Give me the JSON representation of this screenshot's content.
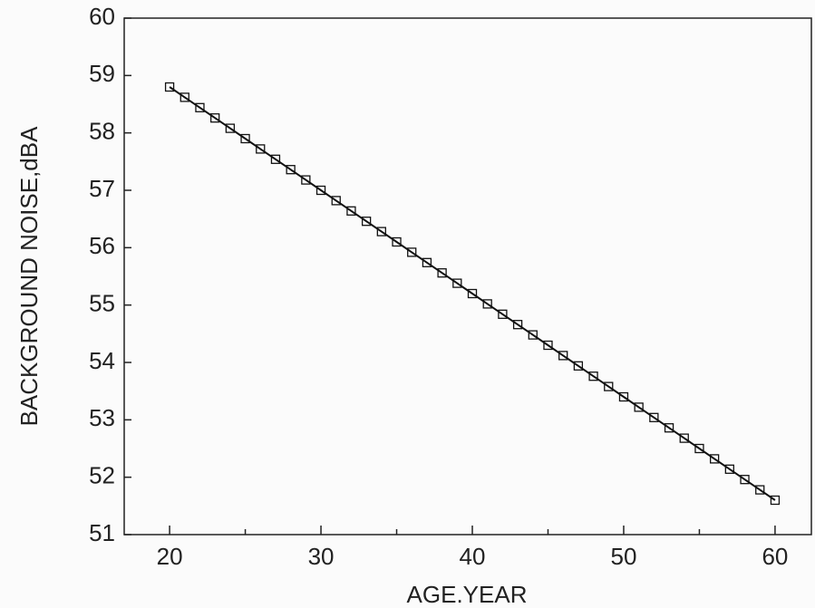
{
  "chart_data": {
    "type": "line",
    "xlabel": "AGE.YEAR",
    "ylabel": "BACKGROUND NOISE,dBA",
    "x": [
      20,
      21,
      22,
      23,
      24,
      25,
      26,
      27,
      28,
      29,
      30,
      31,
      32,
      33,
      34,
      35,
      36,
      37,
      38,
      39,
      40,
      41,
      42,
      43,
      44,
      45,
      46,
      47,
      48,
      49,
      50,
      51,
      52,
      53,
      54,
      55,
      56,
      57,
      58,
      59,
      60
    ],
    "series": [
      {
        "color": "#111111",
        "marker": "square",
        "values": [
          58.8,
          58.62,
          58.44,
          58.26,
          58.08,
          57.9,
          57.72,
          57.54,
          57.36,
          57.18,
          57.0,
          56.82,
          56.64,
          56.46,
          56.28,
          56.1,
          55.92,
          55.74,
          55.56,
          55.38,
          55.2,
          55.02,
          54.84,
          54.66,
          54.48,
          54.3,
          54.12,
          53.94,
          53.76,
          53.58,
          53.4,
          53.22,
          53.04,
          52.86,
          52.68,
          52.5,
          52.32,
          52.14,
          51.96,
          51.78,
          51.6
        ]
      }
    ],
    "xlim": [
      17,
      62.4
    ],
    "ylim": [
      51,
      60
    ],
    "xticks": [
      20,
      30,
      40,
      50,
      60
    ],
    "xminorticks": [
      25,
      35,
      45,
      55
    ],
    "yticks": [
      51,
      52,
      53,
      54,
      55,
      56,
      57,
      58,
      59,
      60
    ],
    "grid": false
  }
}
